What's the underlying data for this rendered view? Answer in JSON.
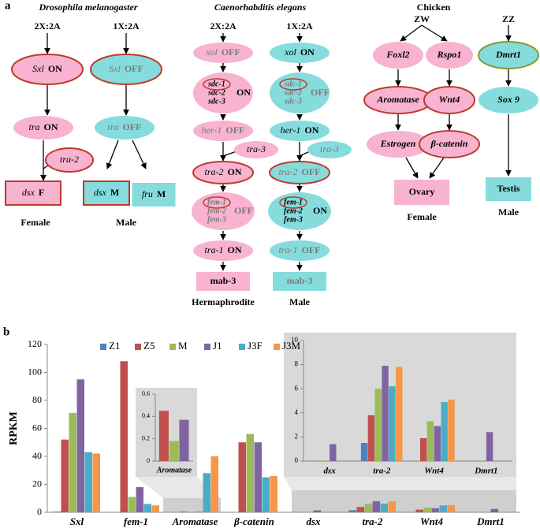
{
  "diagram": {
    "label": "a",
    "drosophila": {
      "title": "Drosophila melanogaster",
      "ratios": [
        "2X:2A",
        "1X:2A"
      ],
      "nodes": [
        {
          "gene": "Sxl",
          "state": "ON"
        },
        {
          "gene": "Sxl",
          "state": "OFF"
        },
        {
          "gene": "tra",
          "state": "ON"
        },
        {
          "gene": "tra",
          "state": "OFF"
        },
        {
          "gene": "tra-2"
        },
        {
          "gene": "dsx",
          "state": "F"
        },
        {
          "gene": "dsx",
          "state": "M"
        },
        {
          "gene": "fru",
          "state": "M"
        }
      ],
      "sexes": [
        "Female",
        "Male"
      ]
    },
    "c_elegans": {
      "title": "Caenorhabditis elegans",
      "ratios": [
        "2X:2A",
        "1X:2A"
      ],
      "nodes": [
        {
          "gene": "xol",
          "state": "OFF"
        },
        {
          "gene": "xol",
          "state": "ON"
        },
        {
          "genes": [
            "sdc-1",
            "sdc-2",
            "sdc-3"
          ],
          "state": "ON"
        },
        {
          "genes": [
            "sdc-1",
            "sdc-2",
            "sdc-3"
          ],
          "state": "OFF"
        },
        {
          "gene": "her-1",
          "state": "OFF"
        },
        {
          "gene": "her-1",
          "state": "ON"
        },
        {
          "gene": "tra-3"
        },
        {
          "gene": "tra-3"
        },
        {
          "gene": "tra-2",
          "state": "ON"
        },
        {
          "gene": "tra-2",
          "state": "OFF"
        },
        {
          "genes": [
            "fem-1",
            "fem-2",
            "fem-3"
          ],
          "state": "OFF"
        },
        {
          "genes": [
            "fem-1",
            "fem-2",
            "fem-3"
          ],
          "state": "ON"
        },
        {
          "gene": "tra-1",
          "state": "ON"
        },
        {
          "gene": "tra-1",
          "state": "OFF"
        },
        {
          "label": "mab-3"
        },
        {
          "label": "mab-3"
        }
      ],
      "sexes": [
        "Hermaphrodite",
        "Male"
      ]
    },
    "chicken": {
      "title": "Chicken",
      "ratios": [
        "ZW",
        "ZZ"
      ],
      "nodes": [
        {
          "gene": "Foxl2"
        },
        {
          "gene": "Rspo1"
        },
        {
          "gene": "Dmrt1"
        },
        {
          "gene": "Aromatase"
        },
        {
          "gene": "Wnt4"
        },
        {
          "gene": "Sox 9"
        },
        {
          "gene": "Estrogen"
        },
        {
          "gene": "β-catenin"
        },
        {
          "label": "Ovary"
        },
        {
          "label": "Testis"
        }
      ],
      "sexes": [
        "Female",
        "Male"
      ]
    }
  },
  "panel_b_label": "b",
  "chart_data": [
    {
      "type": "bar",
      "y_label": "RPKM",
      "categories": [
        "Sxl",
        "fem-1",
        "Aromatase",
        "β-catenin",
        "dsx",
        "tra-2",
        "Wnt4",
        "Dmrt1"
      ],
      "series": [
        {
          "name": "Z1",
          "color": "#4f81bd",
          "values": [
            0.5,
            0,
            0,
            0,
            0,
            1.5,
            0,
            0
          ]
        },
        {
          "name": "Z5",
          "color": "#c0504d",
          "values": [
            52,
            108,
            0.45,
            50,
            0,
            3.8,
            1.9,
            0
          ]
        },
        {
          "name": "M",
          "color": "#9bbb59",
          "values": [
            71,
            11,
            0.18,
            56,
            0.05,
            6,
            3.3,
            0
          ]
        },
        {
          "name": "J1",
          "color": "#8064a2",
          "values": [
            95,
            18,
            0.37,
            50,
            1.4,
            7.9,
            2.9,
            2.4
          ]
        },
        {
          "name": "J3F",
          "color": "#4bacc6",
          "values": [
            43,
            6,
            28,
            25,
            0,
            6.2,
            4.9,
            0
          ]
        },
        {
          "name": "J3M",
          "color": "#f79646",
          "values": [
            42,
            5,
            40,
            26,
            0,
            7.8,
            5.1,
            0
          ]
        }
      ],
      "ylim": [
        0,
        120
      ],
      "yticks": [
        0,
        20,
        40,
        60,
        80,
        100,
        120
      ],
      "legend": "top"
    },
    {
      "type": "bar",
      "categories": [
        "Aromatase"
      ],
      "series": [
        {
          "color": "#c0504d",
          "values": [
            0.45
          ]
        },
        {
          "color": "#9bbb59",
          "values": [
            0.18
          ]
        },
        {
          "color": "#8064a2",
          "values": [
            0.37
          ]
        }
      ],
      "ylim": [
        0,
        0.6
      ],
      "yticks": [
        0,
        0.2,
        0.4,
        0.6
      ]
    },
    {
      "type": "bar",
      "categories": [
        "dsx",
        "tra-2",
        "Wnt4",
        "Dmrt1"
      ],
      "series": [
        {
          "color": "#4f81bd",
          "values": [
            0,
            1.5,
            0,
            0
          ]
        },
        {
          "color": "#c0504d",
          "values": [
            0,
            3.8,
            1.9,
            0
          ]
        },
        {
          "color": "#9bbb59",
          "values": [
            0.05,
            6,
            3.3,
            0
          ]
        },
        {
          "color": "#8064a2",
          "values": [
            1.4,
            7.9,
            2.9,
            2.4
          ]
        },
        {
          "color": "#4bacc6",
          "values": [
            0,
            6.2,
            4.9,
            0
          ]
        },
        {
          "color": "#f79646",
          "values": [
            0,
            7.8,
            5.1,
            0
          ]
        }
      ],
      "ylim": [
        0,
        10
      ],
      "yticks": [
        0,
        2,
        4,
        6,
        8,
        10
      ]
    }
  ]
}
